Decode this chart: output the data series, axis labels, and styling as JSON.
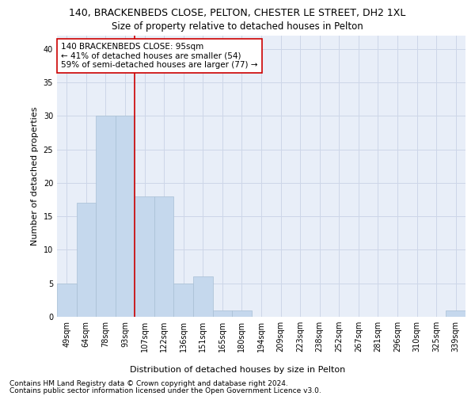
{
  "title": "140, BRACKENBEDS CLOSE, PELTON, CHESTER LE STREET, DH2 1XL",
  "subtitle": "Size of property relative to detached houses in Pelton",
  "xlabel": "Distribution of detached houses by size in Pelton",
  "ylabel": "Number of detached properties",
  "categories": [
    "49sqm",
    "64sqm",
    "78sqm",
    "93sqm",
    "107sqm",
    "122sqm",
    "136sqm",
    "151sqm",
    "165sqm",
    "180sqm",
    "194sqm",
    "209sqm",
    "223sqm",
    "238sqm",
    "252sqm",
    "267sqm",
    "281sqm",
    "296sqm",
    "310sqm",
    "325sqm",
    "339sqm"
  ],
  "values": [
    5,
    17,
    30,
    30,
    18,
    18,
    5,
    6,
    1,
    1,
    0,
    0,
    0,
    0,
    0,
    0,
    0,
    0,
    0,
    0,
    1
  ],
  "bar_color": "#c5d8ed",
  "bar_edge_color": "#a8bfd4",
  "highlight_line_color": "#cc0000",
  "annotation_text": "140 BRACKENBEDS CLOSE: 95sqm\n← 41% of detached houses are smaller (54)\n59% of semi-detached houses are larger (77) →",
  "annotation_box_color": "#ffffff",
  "annotation_box_edge_color": "#cc0000",
  "ylim": [
    0,
    42
  ],
  "yticks": [
    0,
    5,
    10,
    15,
    20,
    25,
    30,
    35,
    40
  ],
  "footer_line1": "Contains HM Land Registry data © Crown copyright and database right 2024.",
  "footer_line2": "Contains public sector information licensed under the Open Government Licence v3.0.",
  "background_color": "#ffffff",
  "grid_color": "#cdd6e8",
  "title_fontsize": 9,
  "subtitle_fontsize": 8.5,
  "axis_label_fontsize": 8,
  "tick_fontsize": 7,
  "annotation_fontsize": 7.5,
  "footer_fontsize": 6.5
}
